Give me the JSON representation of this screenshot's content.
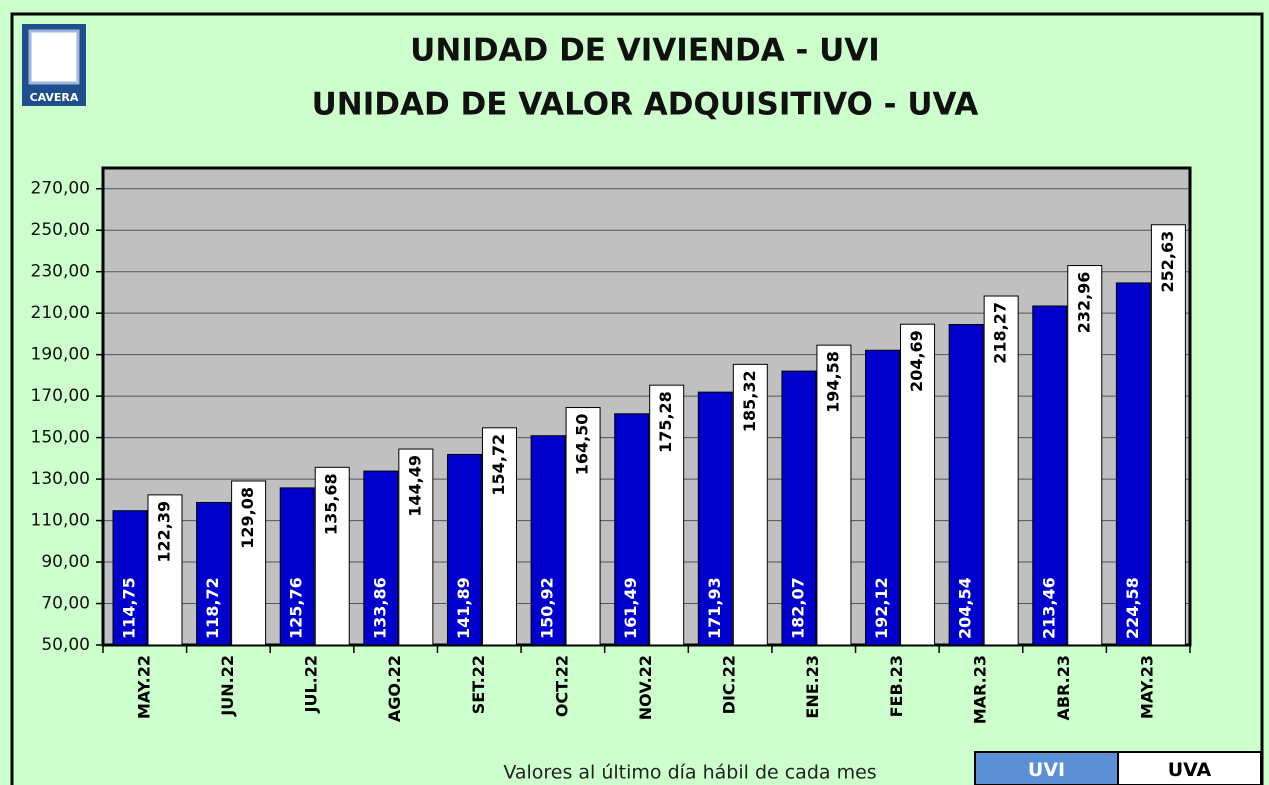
{
  "logo": {
    "text": "CAVERA"
  },
  "chart_data": {
    "type": "bar",
    "title": "UNIDAD DE VIVIENDA - UVI",
    "subtitle": "UNIDAD DE VALOR ADQUISITIVO - UVA",
    "x_label": "Valores al último día hábil de cada mes",
    "categories": [
      "MAY.22",
      "JUN.22",
      "JUL.22",
      "AGO.22",
      "SET.22",
      "OCT.22",
      "NOV.22",
      "DIC.22",
      "ENE.23",
      "FEB.23",
      "MAR.23",
      "ABR.23",
      "MAY.23"
    ],
    "series": [
      {
        "name": "UVI",
        "color": "#0000cc",
        "label_color": "#ffffff",
        "values": [
          114.75,
          118.72,
          125.76,
          133.86,
          141.89,
          150.92,
          161.49,
          171.93,
          182.07,
          192.12,
          204.54,
          213.46,
          224.58
        ],
        "value_labels": [
          "114,75",
          "118,72",
          "125,76",
          "133,86",
          "141,89",
          "150,92",
          "161,49",
          "171,93",
          "182,07",
          "192,12",
          "204,54",
          "213,46",
          "224,58"
        ]
      },
      {
        "name": "UVA",
        "color": "#ffffff",
        "label_color": "#000000",
        "values": [
          122.39,
          129.08,
          135.68,
          144.49,
          154.72,
          164.5,
          175.28,
          185.32,
          194.58,
          204.69,
          218.27,
          232.96,
          252.63
        ],
        "value_labels": [
          "122,39",
          "129,08",
          "135,68",
          "144,49",
          "154,72",
          "164,50",
          "175,28",
          "185,32",
          "194,58",
          "204,69",
          "218,27",
          "232,96",
          "252,63"
        ]
      }
    ],
    "ylim": [
      50,
      280
    ],
    "yticks": [
      {
        "value": 50,
        "label": "50,00"
      },
      {
        "value": 70,
        "label": "70,00"
      },
      {
        "value": 90,
        "label": "90,00"
      },
      {
        "value": 110,
        "label": "110,00"
      },
      {
        "value": 130,
        "label": "130,00"
      },
      {
        "value": 150,
        "label": "150,00"
      },
      {
        "value": 170,
        "label": "170,00"
      },
      {
        "value": 190,
        "label": "190,00"
      },
      {
        "value": 210,
        "label": "210,00"
      },
      {
        "value": 230,
        "label": "230,00"
      },
      {
        "value": 250,
        "label": "250,00"
      },
      {
        "value": 270,
        "label": "270,00"
      }
    ],
    "grid": true,
    "legend": "bottom-right"
  }
}
